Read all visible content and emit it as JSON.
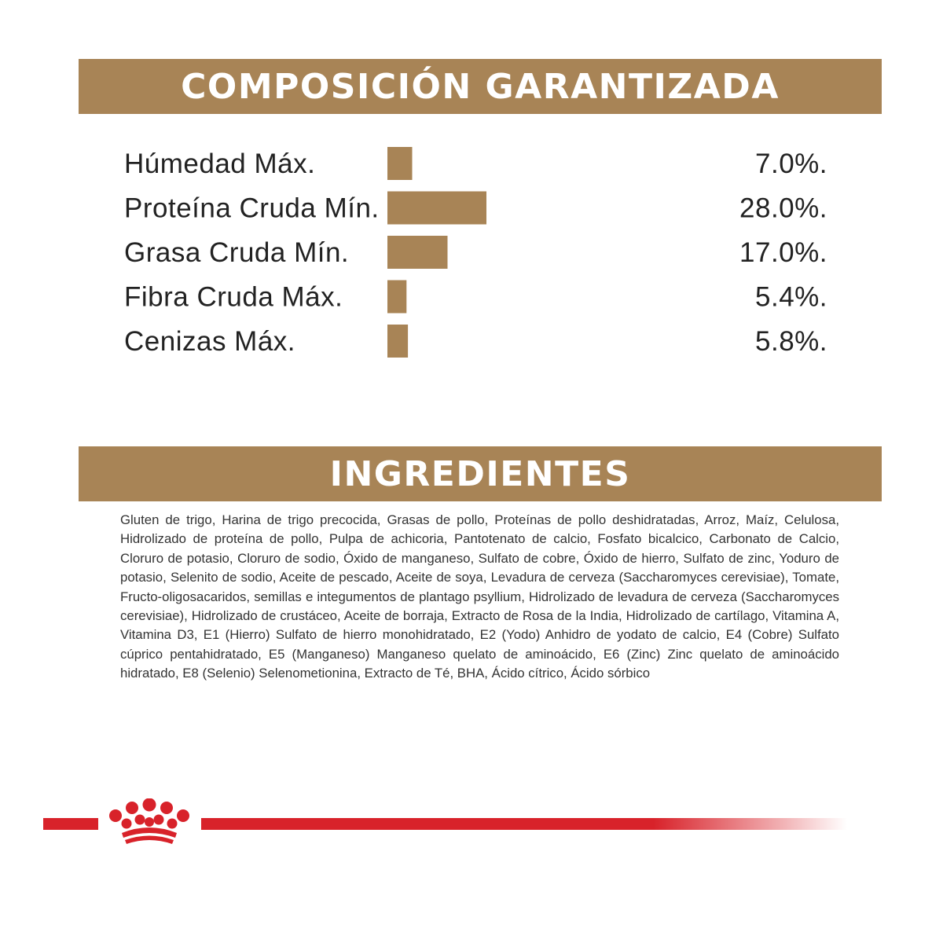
{
  "composition": {
    "title": "COMPOSICIÓN GARANTIZADA"
  },
  "ingredients": {
    "title": "INGREDIENTES",
    "text": "Gluten de trigo, Harina de trigo precocida, Grasas  de pollo, Proteínas de pollo deshidratadas, Arroz, Maíz, Celulosa, Hidrolizado de proteína de pollo, Pulpa de achicoria, Pantotenato de calcio, Fosfato bicalcico, Carbonato de Calcio, Cloruro de potasio, Cloruro de sodio, Óxido de manganeso, Sulfato de cobre, Óxido de hierro, Sulfato de zinc, Yoduro de potasio, Selenito de sodio, Aceite de pescado, Aceite de soya, Levadura de cerveza (Saccharomyces cerevisiae), Tomate, Fructo-oligosacaridos, semillas e integumentos de plantago psyllium, Hidrolizado de levadura de cerveza (Saccharomyces cerevisiae), Hidrolizado de crustáceo, Aceite de borraja, Extracto de Rosa de la India, Hidrolizado de cartílago, Vitamina A, Vitamina D3, E1 (Hierro) Sulfato de hierro monohidratado, E2 (Yodo) Anhidro de yodato de calcio, E4 (Cobre) Sulfato cúprico pentahidratado, E5 (Manganeso) Manganeso quelato de aminoácido, E6 (Zinc) Zinc quelato de aminoácido hidratado, E8 (Selenio) Selenometionina, Extracto de Té, BHA, Ácido cítrico, Ácido sórbico"
  },
  "colors": {
    "banner": "#a88456",
    "bar": "#a88456",
    "accent_red": "#d8222a"
  },
  "logo": {
    "icon": "royal-canin-crown-icon"
  },
  "chart_data": {
    "type": "bar",
    "orientation": "horizontal",
    "title": "COMPOSICIÓN GARANTIZADA",
    "categories": [
      "Húmedad Máx.",
      "Proteína Cruda Mín.",
      "Grasa Cruda Mín.",
      "Fibra Cruda Máx.",
      "Cenizas Máx."
    ],
    "values": [
      7.0,
      28.0,
      17.0,
      5.4,
      5.8
    ],
    "value_labels": [
      "7.0%.",
      "28.0%.",
      "17.0%.",
      "5.4%.",
      "5.8%."
    ],
    "xlim": [
      0,
      28
    ],
    "grid": false,
    "legend": "none"
  }
}
